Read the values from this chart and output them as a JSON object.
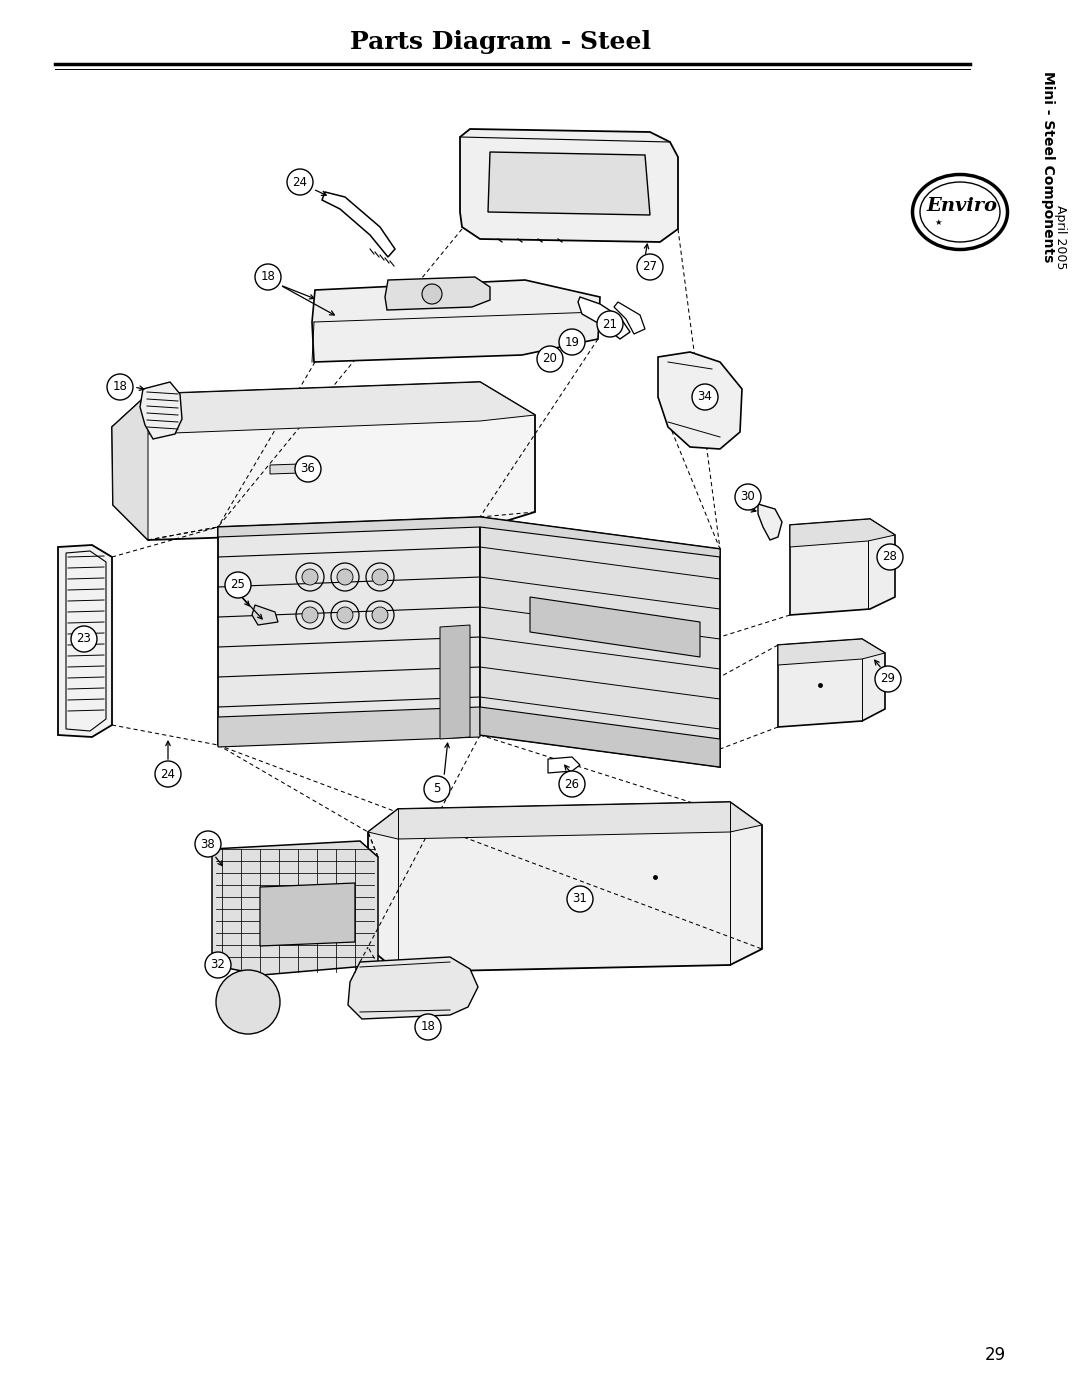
{
  "title": "Parts Diagram - Steel",
  "title_fontsize": 18,
  "subtitle": "Mini - Steel Components",
  "subtitle2": "April 2005",
  "page_number": "29",
  "brand": "Enviro",
  "background_color": "#ffffff",
  "figure_width": 10.8,
  "figure_height": 13.97,
  "dpi": 100
}
